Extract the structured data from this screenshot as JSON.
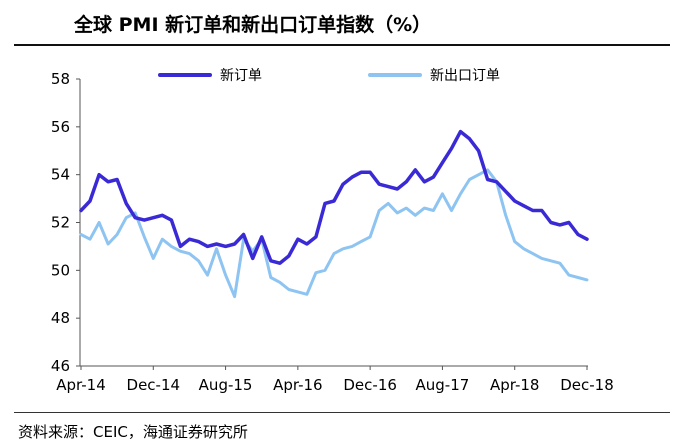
{
  "chart_data": {
    "type": "line",
    "title": "全球 PMI 新订单和新出口订单指数（%）",
    "xlabel": "",
    "ylabel": "",
    "ylim": [
      46,
      58
    ],
    "yticks": [
      "46",
      "48",
      "50",
      "52",
      "54",
      "56",
      "58"
    ],
    "xticks": [
      "Apr-14",
      "Dec-14",
      "Aug-15",
      "Apr-16",
      "Dec-16",
      "Aug-17",
      "Apr-18",
      "Dec-18"
    ],
    "legend_position": "top",
    "grid": false,
    "x": [
      "Apr-14",
      "May-14",
      "Jun-14",
      "Jul-14",
      "Aug-14",
      "Sep-14",
      "Oct-14",
      "Nov-14",
      "Dec-14",
      "Jan-15",
      "Feb-15",
      "Mar-15",
      "Apr-15",
      "May-15",
      "Jun-15",
      "Jul-15",
      "Aug-15",
      "Sep-15",
      "Oct-15",
      "Nov-15",
      "Dec-15",
      "Jan-16",
      "Feb-16",
      "Mar-16",
      "Apr-16",
      "May-16",
      "Jun-16",
      "Jul-16",
      "Aug-16",
      "Sep-16",
      "Oct-16",
      "Nov-16",
      "Dec-16",
      "Jan-17",
      "Feb-17",
      "Mar-17",
      "Apr-17",
      "May-17",
      "Jun-17",
      "Jul-17",
      "Aug-17",
      "Sep-17",
      "Oct-17",
      "Nov-17",
      "Dec-17",
      "Jan-18",
      "Feb-18",
      "Mar-18",
      "Apr-18",
      "May-18",
      "Jun-18",
      "Jul-18",
      "Aug-18",
      "Sep-18",
      "Oct-18",
      "Nov-18",
      "Dec-18"
    ],
    "series": [
      {
        "name": "新订单",
        "color": "#3a2ad6",
        "values": [
          52.5,
          52.9,
          54.0,
          53.7,
          53.8,
          52.8,
          52.2,
          52.1,
          52.2,
          52.3,
          52.1,
          51.0,
          51.3,
          51.2,
          51.0,
          51.1,
          51.0,
          51.1,
          51.5,
          50.5,
          51.4,
          50.4,
          50.3,
          50.6,
          51.3,
          51.1,
          51.4,
          52.8,
          52.9,
          53.6,
          53.9,
          54.1,
          54.1,
          53.6,
          53.5,
          53.4,
          53.7,
          54.2,
          53.7,
          53.9,
          54.5,
          55.1,
          55.8,
          55.5,
          55.0,
          53.8,
          53.7,
          53.3,
          52.9,
          52.7,
          52.5,
          52.5,
          52.0,
          51.9,
          52.0,
          51.5,
          51.3
        ]
      },
      {
        "name": "新出口订单",
        "color": "#8ec4f2",
        "values": [
          51.5,
          51.3,
          52.0,
          51.1,
          51.5,
          52.2,
          52.4,
          51.4,
          50.5,
          51.3,
          51.0,
          50.8,
          50.7,
          50.4,
          49.8,
          50.9,
          49.8,
          48.9,
          51.3,
          50.8,
          51.3,
          49.7,
          49.5,
          49.2,
          49.1,
          49.0,
          49.9,
          50.0,
          50.7,
          50.9,
          51.0,
          51.2,
          51.4,
          52.5,
          52.8,
          52.4,
          52.6,
          52.3,
          52.6,
          52.5,
          53.2,
          52.5,
          53.2,
          53.8,
          54.0,
          54.2,
          53.7,
          52.3,
          51.2,
          50.9,
          50.7,
          50.5,
          50.4,
          50.3,
          49.8,
          49.7,
          49.6
        ]
      }
    ]
  },
  "footer": {
    "source": "资料来源：CEIC，海通证券研究所"
  }
}
